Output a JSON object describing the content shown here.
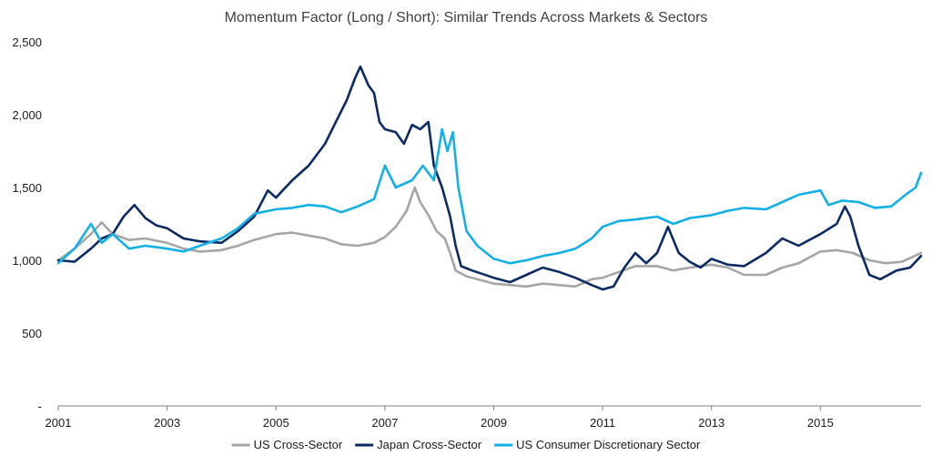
{
  "chart_data": {
    "type": "line",
    "title": "Momentum Factor (Long / Short): Similar Trends Across Markets & Sectors",
    "xlabel": "",
    "ylabel": "",
    "xlim": [
      2001,
      2016.85
    ],
    "ylim": [
      0,
      2500
    ],
    "y_ticks": [
      {
        "value": 0,
        "label": "-"
      },
      {
        "value": 500,
        "label": "500"
      },
      {
        "value": 1000,
        "label": "1,000"
      },
      {
        "value": 1500,
        "label": "1,500"
      },
      {
        "value": 2000,
        "label": "2,000"
      },
      {
        "value": 2500,
        "label": "2,500"
      }
    ],
    "x_ticks": [
      {
        "value": 2001,
        "label": "2001"
      },
      {
        "value": 2003,
        "label": "2003"
      },
      {
        "value": 2005,
        "label": "2005"
      },
      {
        "value": 2007,
        "label": "2007"
      },
      {
        "value": 2009,
        "label": "2009"
      },
      {
        "value": 2011,
        "label": "2011"
      },
      {
        "value": 2013,
        "label": "2013"
      },
      {
        "value": 2015,
        "label": "2015"
      }
    ],
    "legend_position": "bottom",
    "grid": false,
    "series": [
      {
        "name": "US Cross-Sector",
        "color": "#a6a6a6",
        "points": [
          [
            2001.0,
            1000
          ],
          [
            2001.3,
            1080
          ],
          [
            2001.6,
            1180
          ],
          [
            2001.8,
            1260
          ],
          [
            2002.0,
            1180
          ],
          [
            2002.3,
            1140
          ],
          [
            2002.6,
            1150
          ],
          [
            2003.0,
            1120
          ],
          [
            2003.3,
            1080
          ],
          [
            2003.6,
            1060
          ],
          [
            2004.0,
            1070
          ],
          [
            2004.3,
            1100
          ],
          [
            2004.6,
            1140
          ],
          [
            2005.0,
            1180
          ],
          [
            2005.3,
            1190
          ],
          [
            2005.6,
            1170
          ],
          [
            2005.9,
            1150
          ],
          [
            2006.2,
            1110
          ],
          [
            2006.5,
            1100
          ],
          [
            2006.8,
            1120
          ],
          [
            2007.0,
            1160
          ],
          [
            2007.2,
            1230
          ],
          [
            2007.4,
            1340
          ],
          [
            2007.5,
            1450
          ],
          [
            2007.55,
            1500
          ],
          [
            2007.65,
            1400
          ],
          [
            2007.8,
            1310
          ],
          [
            2007.95,
            1200
          ],
          [
            2008.1,
            1150
          ],
          [
            2008.2,
            1050
          ],
          [
            2008.3,
            930
          ],
          [
            2008.5,
            890
          ],
          [
            2008.8,
            860
          ],
          [
            2009.0,
            840
          ],
          [
            2009.3,
            830
          ],
          [
            2009.6,
            820
          ],
          [
            2009.9,
            840
          ],
          [
            2010.2,
            830
          ],
          [
            2010.5,
            820
          ],
          [
            2010.8,
            870
          ],
          [
            2011.0,
            880
          ],
          [
            2011.3,
            920
          ],
          [
            2011.6,
            960
          ],
          [
            2012.0,
            960
          ],
          [
            2012.3,
            930
          ],
          [
            2012.6,
            950
          ],
          [
            2013.0,
            970
          ],
          [
            2013.3,
            950
          ],
          [
            2013.6,
            900
          ],
          [
            2014.0,
            900
          ],
          [
            2014.3,
            950
          ],
          [
            2014.6,
            980
          ],
          [
            2015.0,
            1060
          ],
          [
            2015.3,
            1070
          ],
          [
            2015.6,
            1050
          ],
          [
            2015.9,
            1000
          ],
          [
            2016.2,
            980
          ],
          [
            2016.5,
            990
          ],
          [
            2016.85,
            1050
          ]
        ]
      },
      {
        "name": "Japan Cross-Sector",
        "color": "#0c2a63",
        "points": [
          [
            2001.0,
            1000
          ],
          [
            2001.3,
            990
          ],
          [
            2001.6,
            1080
          ],
          [
            2001.8,
            1150
          ],
          [
            2002.0,
            1180
          ],
          [
            2002.2,
            1300
          ],
          [
            2002.4,
            1380
          ],
          [
            2002.6,
            1290
          ],
          [
            2002.8,
            1240
          ],
          [
            2003.0,
            1220
          ],
          [
            2003.3,
            1150
          ],
          [
            2003.6,
            1130
          ],
          [
            2004.0,
            1120
          ],
          [
            2004.3,
            1200
          ],
          [
            2004.6,
            1300
          ],
          [
            2004.85,
            1480
          ],
          [
            2005.0,
            1430
          ],
          [
            2005.3,
            1550
          ],
          [
            2005.6,
            1650
          ],
          [
            2005.9,
            1800
          ],
          [
            2006.1,
            1950
          ],
          [
            2006.3,
            2100
          ],
          [
            2006.45,
            2250
          ],
          [
            2006.55,
            2330
          ],
          [
            2006.7,
            2200
          ],
          [
            2006.8,
            2150
          ],
          [
            2006.9,
            1950
          ],
          [
            2007.0,
            1900
          ],
          [
            2007.2,
            1880
          ],
          [
            2007.35,
            1800
          ],
          [
            2007.5,
            1930
          ],
          [
            2007.65,
            1900
          ],
          [
            2007.8,
            1950
          ],
          [
            2007.9,
            1650
          ],
          [
            2008.05,
            1500
          ],
          [
            2008.2,
            1300
          ],
          [
            2008.3,
            1100
          ],
          [
            2008.4,
            960
          ],
          [
            2008.6,
            930
          ],
          [
            2009.0,
            880
          ],
          [
            2009.3,
            850
          ],
          [
            2009.6,
            900
          ],
          [
            2009.9,
            950
          ],
          [
            2010.2,
            920
          ],
          [
            2010.5,
            880
          ],
          [
            2010.8,
            830
          ],
          [
            2011.0,
            800
          ],
          [
            2011.2,
            820
          ],
          [
            2011.4,
            950
          ],
          [
            2011.6,
            1050
          ],
          [
            2011.8,
            980
          ],
          [
            2012.0,
            1050
          ],
          [
            2012.2,
            1230
          ],
          [
            2012.4,
            1050
          ],
          [
            2012.6,
            990
          ],
          [
            2012.8,
            950
          ],
          [
            2013.0,
            1010
          ],
          [
            2013.3,
            970
          ],
          [
            2013.6,
            960
          ],
          [
            2014.0,
            1050
          ],
          [
            2014.3,
            1150
          ],
          [
            2014.6,
            1100
          ],
          [
            2015.0,
            1180
          ],
          [
            2015.3,
            1250
          ],
          [
            2015.45,
            1370
          ],
          [
            2015.55,
            1300
          ],
          [
            2015.7,
            1100
          ],
          [
            2015.9,
            900
          ],
          [
            2016.1,
            870
          ],
          [
            2016.4,
            930
          ],
          [
            2016.65,
            950
          ],
          [
            2016.85,
            1030
          ]
        ]
      },
      {
        "name": "US Consumer Discretionary Sector",
        "color": "#13b0e6",
        "points": [
          [
            2001.0,
            980
          ],
          [
            2001.3,
            1080
          ],
          [
            2001.6,
            1250
          ],
          [
            2001.8,
            1120
          ],
          [
            2002.0,
            1180
          ],
          [
            2002.3,
            1080
          ],
          [
            2002.6,
            1100
          ],
          [
            2003.0,
            1080
          ],
          [
            2003.3,
            1060
          ],
          [
            2003.6,
            1100
          ],
          [
            2004.0,
            1150
          ],
          [
            2004.3,
            1220
          ],
          [
            2004.6,
            1320
          ],
          [
            2005.0,
            1350
          ],
          [
            2005.3,
            1360
          ],
          [
            2005.6,
            1380
          ],
          [
            2005.9,
            1370
          ],
          [
            2006.2,
            1330
          ],
          [
            2006.5,
            1370
          ],
          [
            2006.8,
            1420
          ],
          [
            2007.0,
            1650
          ],
          [
            2007.2,
            1500
          ],
          [
            2007.5,
            1550
          ],
          [
            2007.7,
            1650
          ],
          [
            2007.9,
            1550
          ],
          [
            2008.05,
            1900
          ],
          [
            2008.15,
            1750
          ],
          [
            2008.25,
            1880
          ],
          [
            2008.35,
            1500
          ],
          [
            2008.5,
            1200
          ],
          [
            2008.7,
            1100
          ],
          [
            2009.0,
            1010
          ],
          [
            2009.3,
            980
          ],
          [
            2009.6,
            1000
          ],
          [
            2009.9,
            1030
          ],
          [
            2010.2,
            1050
          ],
          [
            2010.5,
            1080
          ],
          [
            2010.8,
            1150
          ],
          [
            2011.0,
            1230
          ],
          [
            2011.3,
            1270
          ],
          [
            2011.6,
            1280
          ],
          [
            2012.0,
            1300
          ],
          [
            2012.3,
            1250
          ],
          [
            2012.6,
            1290
          ],
          [
            2013.0,
            1310
          ],
          [
            2013.3,
            1340
          ],
          [
            2013.6,
            1360
          ],
          [
            2014.0,
            1350
          ],
          [
            2014.3,
            1400
          ],
          [
            2014.6,
            1450
          ],
          [
            2015.0,
            1480
          ],
          [
            2015.15,
            1380
          ],
          [
            2015.4,
            1410
          ],
          [
            2015.7,
            1400
          ],
          [
            2016.0,
            1360
          ],
          [
            2016.3,
            1370
          ],
          [
            2016.6,
            1460
          ],
          [
            2016.75,
            1500
          ],
          [
            2016.85,
            1600
          ]
        ]
      }
    ]
  }
}
